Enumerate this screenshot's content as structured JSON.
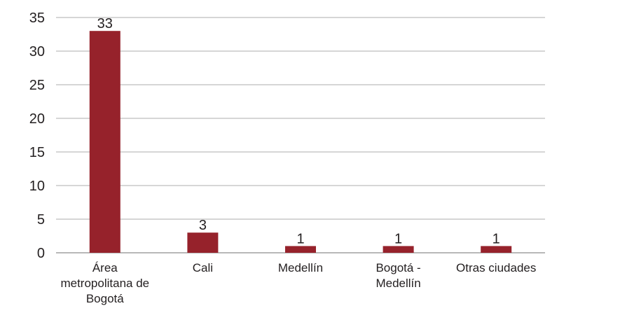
{
  "chart_data": {
    "type": "bar",
    "categories": [
      [
        "Área",
        "metropolitana de",
        "Bogotá"
      ],
      [
        "Cali"
      ],
      [
        "Medellín"
      ],
      [
        "Bogotá -",
        "Medellín"
      ],
      [
        "Otras ciudades"
      ]
    ],
    "values": [
      33,
      3,
      1,
      1,
      1
    ],
    "data_labels": [
      "33",
      "3",
      "1",
      "1",
      "1"
    ],
    "title": "",
    "xlabel": "",
    "ylabel": "",
    "ylim": [
      0,
      35
    ],
    "yticks": [
      0,
      5,
      10,
      15,
      20,
      25,
      30,
      35
    ],
    "grid": true,
    "colors": {
      "bar": "#96222b"
    }
  }
}
